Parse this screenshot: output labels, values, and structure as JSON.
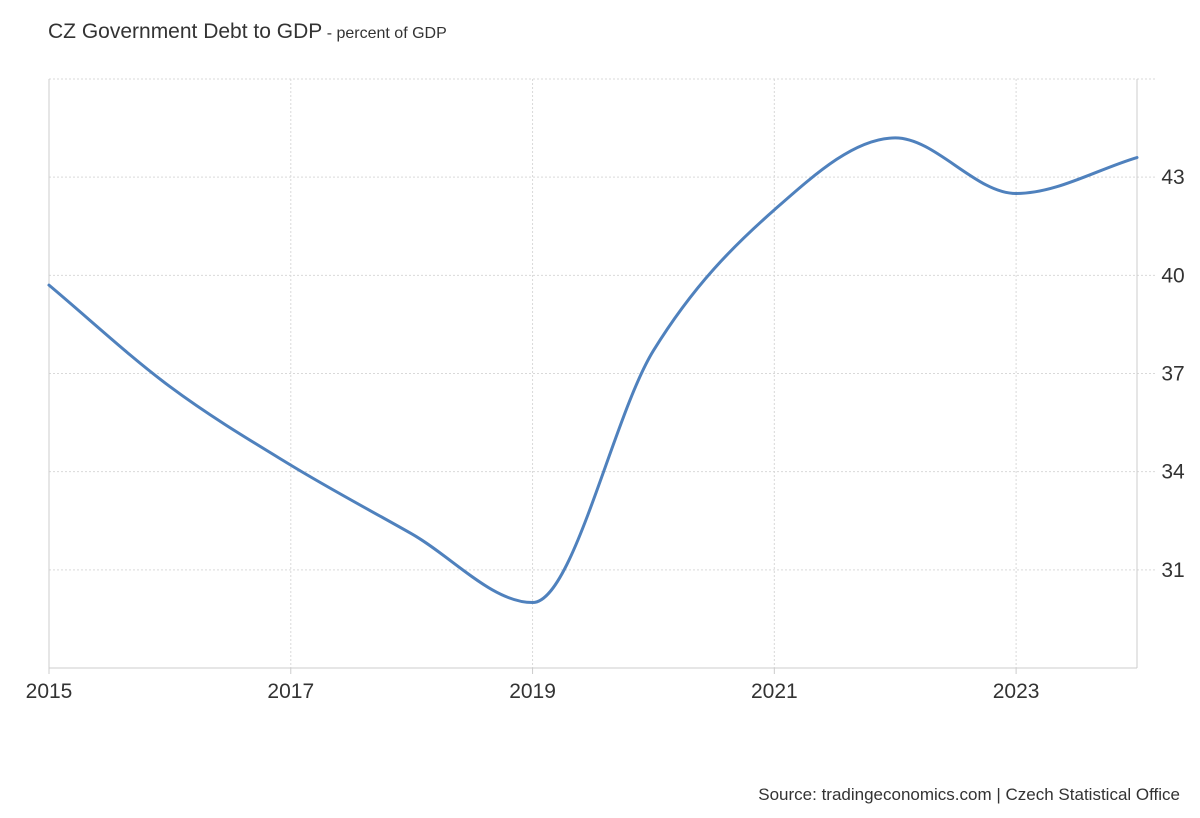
{
  "title": "CZ Government Debt to GDP",
  "subtitle": "- percent of GDP",
  "source": "Source: tradingeconomics.com | Czech Statistical Office",
  "colors": {
    "line": "#4f81bd",
    "grid": "#d9d9d9",
    "axis": "#cccccc",
    "text": "#333333"
  },
  "chart_data": {
    "type": "line",
    "title": "CZ Government Debt to GDP",
    "subtitle": "- percent of GDP",
    "x": [
      2015,
      2016,
      2017,
      2018,
      2019,
      2020,
      2021,
      2022,
      2023,
      2024
    ],
    "x_ticks": [
      "2015",
      "2017",
      "2019",
      "2021",
      "2023"
    ],
    "y_ticks": [
      "31",
      "34",
      "37",
      "40",
      "43"
    ],
    "series": [
      {
        "values": [
          39.7,
          36.6,
          34.2,
          32.1,
          30.0,
          37.7,
          42.0,
          44.2,
          42.5,
          43.6
        ]
      }
    ],
    "xlim": [
      2015,
      2024
    ],
    "ylim": [
      28,
      46
    ],
    "y_axis_position": "right",
    "grid": true,
    "legend": "none"
  }
}
